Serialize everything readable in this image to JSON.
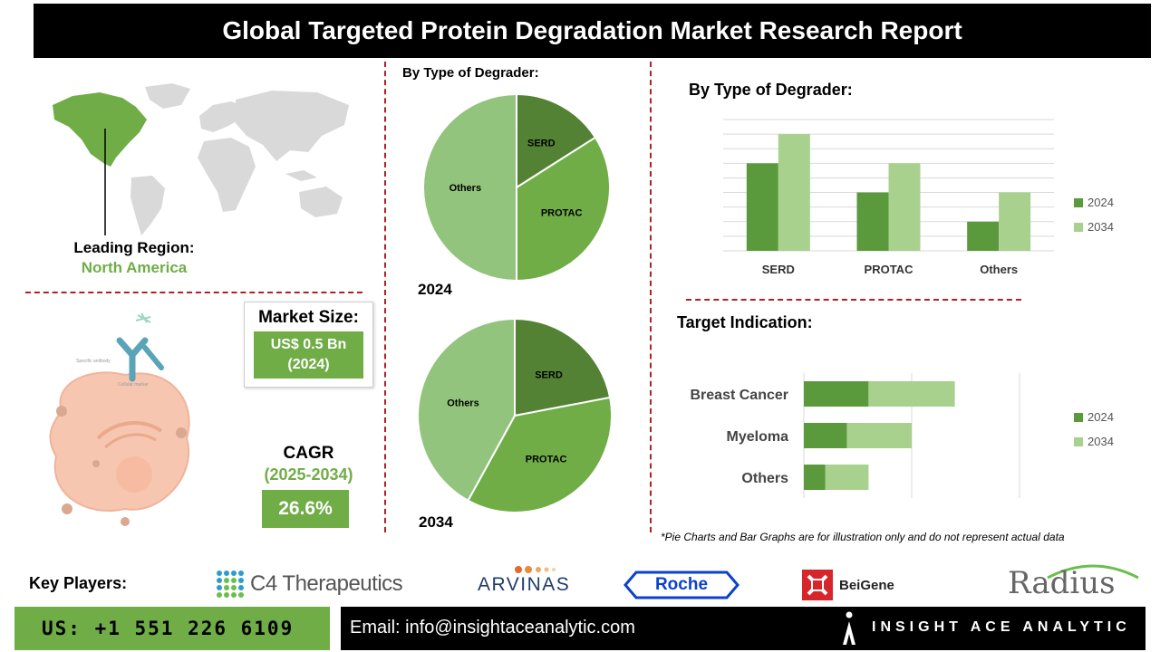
{
  "title": "Global Targeted Protein Degradation Market Research Report",
  "leading_region": {
    "label": "Leading Region:",
    "value": "North America"
  },
  "market_size": {
    "label": "Market Size:",
    "value_line1": "US$ 0.5 Bn",
    "value_line2": "(2024)"
  },
  "cagr": {
    "label": "CAGR",
    "period": "(2025-2034)",
    "value": "26.6%"
  },
  "illustration": {
    "antibody_label": "Specific antibody",
    "marker_label": "Cellular marker"
  },
  "pie_section": {
    "heading": "By Type of Degrader:",
    "year_2024": "2024",
    "year_2034": "2034"
  },
  "bar_section": {
    "heading": "By Type of Degrader:"
  },
  "hbar_section": {
    "heading": "Target Indication:"
  },
  "footnote": "*Pie Charts and Bar Graphs are for illustration only and do not represent actual data",
  "key_players": {
    "label": "Key Players:",
    "c4": "C4 Therapeutics",
    "arvinas": "ARVINAS",
    "roche": "Roche",
    "beigene": "BeiGene",
    "radius": "Radius"
  },
  "contact": {
    "phone": "US: +1 551 226 6109",
    "email": "Email: info@insightaceanalytic.com",
    "brand": "INSIGHT ACE ANALYTIC"
  },
  "colors": {
    "dark_green": "#548235",
    "mid_green": "#70ad47",
    "light_green": "#a9d18e",
    "pale_green": "#93c47d",
    "accent_red": "#b22222"
  },
  "chart_data": [
    {
      "type": "pie",
      "title": "2024",
      "slices": [
        {
          "label": "SERD",
          "value": 16
        },
        {
          "label": "PROTAC",
          "value": 34
        },
        {
          "label": "Others",
          "value": 50
        }
      ]
    },
    {
      "type": "pie",
      "title": "2034",
      "slices": [
        {
          "label": "SERD",
          "value": 22
        },
        {
          "label": "PROTAC",
          "value": 36
        },
        {
          "label": "Others",
          "value": 42
        }
      ]
    },
    {
      "type": "bar",
      "title": "By Type of Degrader:",
      "categories": [
        "SERD",
        "PROTAC",
        "Others"
      ],
      "series": [
        {
          "name": "2024",
          "values": [
            6,
            4,
            2
          ]
        },
        {
          "name": "2034",
          "values": [
            8,
            6,
            4
          ]
        }
      ],
      "ylim": [
        0,
        9
      ],
      "grid": true,
      "legend": "right"
    },
    {
      "type": "bar",
      "orientation": "horizontal",
      "stacked": true,
      "title": "Target Indication:",
      "categories": [
        "Breast Cancer",
        "Myeloma",
        "Others"
      ],
      "series": [
        {
          "name": "2024",
          "values": [
            3,
            2,
            1
          ]
        },
        {
          "name": "2034",
          "values": [
            4,
            3,
            2
          ]
        }
      ],
      "xlim": [
        0,
        10
      ],
      "legend": "right"
    }
  ]
}
